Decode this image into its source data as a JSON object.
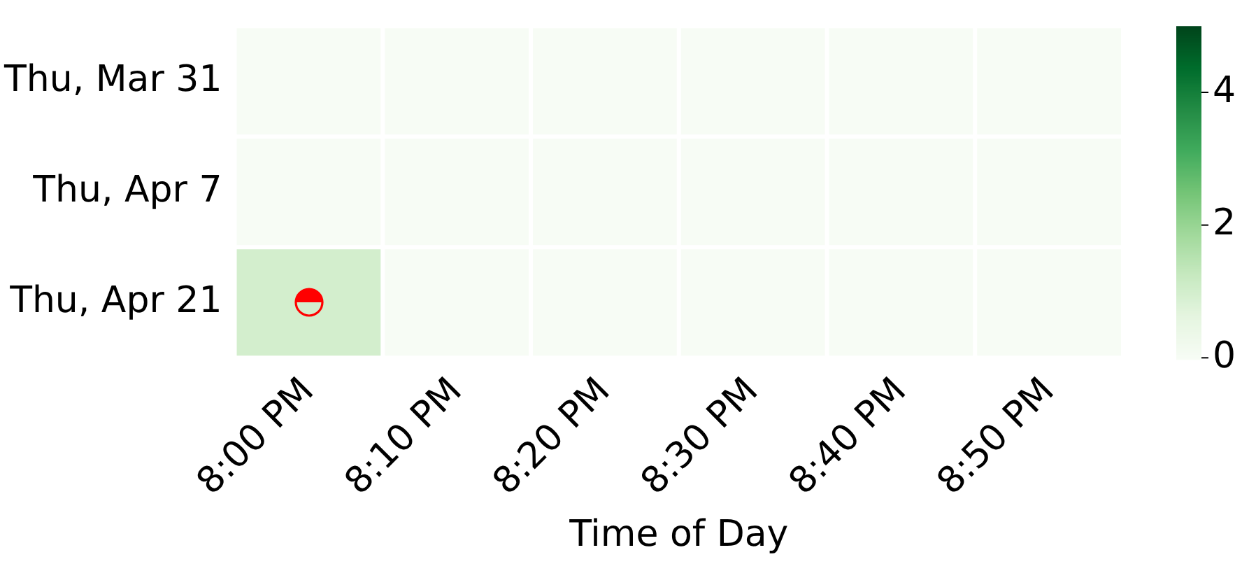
{
  "chart_data": {
    "type": "heatmap",
    "xlabel": "Time of Day",
    "categories": [
      "8:00 PM",
      "8:10 PM",
      "8:20 PM",
      "8:30 PM",
      "8:40 PM",
      "8:50 PM"
    ],
    "y_categories": [
      "Thu, Mar 31",
      "Thu, Apr 7",
      "Thu, Apr 21"
    ],
    "cells": [
      [
        0,
        0,
        0,
        0,
        0,
        0
      ],
      [
        0,
        0,
        0,
        0,
        0,
        0
      ],
      [
        1,
        0,
        0,
        0,
        0,
        0
      ]
    ],
    "clim": [
      0,
      5
    ],
    "cticks": [
      0,
      2,
      4
    ]
  }
}
